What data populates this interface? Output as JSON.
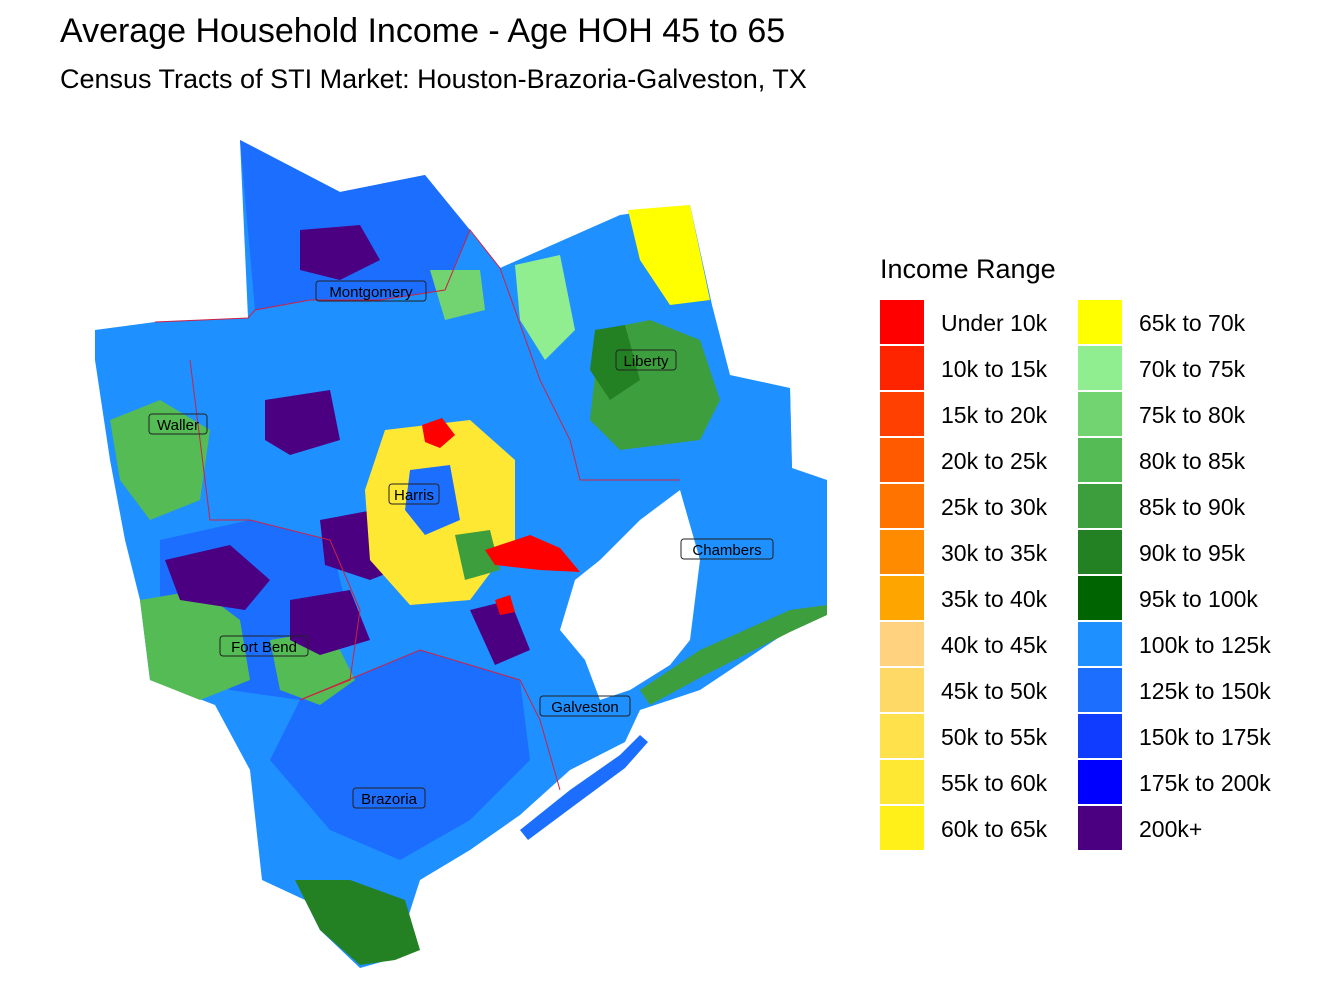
{
  "title": "Average Household Income - Age HOH 45 to 65",
  "subtitle": "Census Tracts of STI Market: Houston-Brazoria-Galveston, TX",
  "legend": {
    "title": "Income Range",
    "items": [
      {
        "label": "Under 10k",
        "color": "#ff0000"
      },
      {
        "label": "10k to 15k",
        "color": "#ff2400"
      },
      {
        "label": "15k to 20k",
        "color": "#ff4000"
      },
      {
        "label": "20k to 25k",
        "color": "#ff5a00"
      },
      {
        "label": "25k to 30k",
        "color": "#ff7300"
      },
      {
        "label": "30k to 35k",
        "color": "#ff8c00"
      },
      {
        "label": "35k to 40k",
        "color": "#ffa500"
      },
      {
        "label": "40k to 45k",
        "color": "#ffd27f"
      },
      {
        "label": "45k to 50k",
        "color": "#ffd966"
      },
      {
        "label": "50k to 55k",
        "color": "#ffe14c"
      },
      {
        "label": "55k to 60k",
        "color": "#ffe833"
      },
      {
        "label": "60k to 65k",
        "color": "#fff019"
      },
      {
        "label": "65k to 70k",
        "color": "#ffff00"
      },
      {
        "label": "70k to 75k",
        "color": "#90ee90"
      },
      {
        "label": "75k to 80k",
        "color": "#71d471"
      },
      {
        "label": "80k to 85k",
        "color": "#55bb55"
      },
      {
        "label": "85k to 90k",
        "color": "#3d9e3d"
      },
      {
        "label": "90k to 95k",
        "color": "#238023"
      },
      {
        "label": "95k to 100k",
        "color": "#006400"
      },
      {
        "label": "100k to 125k",
        "color": "#1e90ff"
      },
      {
        "label": "125k to 150k",
        "color": "#1c6eff"
      },
      {
        "label": "150k to 175k",
        "color": "#0f3cff"
      },
      {
        "label": "175k to 200k",
        "color": "#0000ff"
      },
      {
        "label": "200k+",
        "color": "#4b0082"
      }
    ]
  },
  "counties": {
    "montgomery": "Montgomery",
    "liberty": "Liberty",
    "waller": "Waller",
    "harris": "Harris",
    "chambers": "Chambers",
    "fort_bend": "Fort Bend",
    "galveston": "Galveston",
    "brazoria": "Brazoria"
  }
}
